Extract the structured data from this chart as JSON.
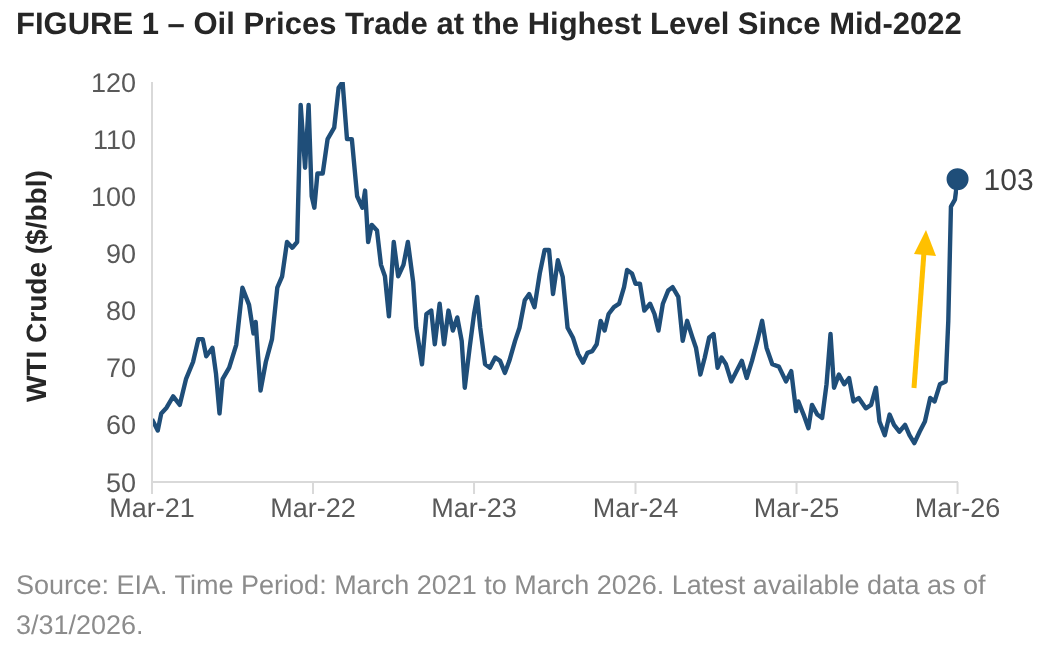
{
  "chart_data": {
    "type": "line",
    "title": "FIGURE 1 – Oil Prices Trade at the Highest Level Since Mid-2022",
    "ylabel": "WTI Crude ($/bbl)",
    "xlim": [
      "2021-03-01",
      "2026-03-02"
    ],
    "xticks": [
      {
        "value": "2021-03-01",
        "label": "Mar-21"
      },
      {
        "value": "2022-03-01",
        "label": "Mar-22"
      },
      {
        "value": "2023-03-01",
        "label": "Mar-23"
      },
      {
        "value": "2024-03-01",
        "label": "Mar-24"
      },
      {
        "value": "2025-03-01",
        "label": "Mar-25"
      },
      {
        "value": "2026-03-01",
        "label": "Mar-26"
      }
    ],
    "ylim": [
      50,
      120
    ],
    "yticks": [
      50,
      60,
      70,
      80,
      90,
      100,
      110,
      120
    ],
    "series": [
      {
        "color": "#1f4e79",
        "x": [
          "2021-03-01",
          "2021-03-14",
          "2021-03-22",
          "2021-04-03",
          "2021-04-18",
          "2021-05-03",
          "2021-05-17",
          "2021-06-02",
          "2021-06-14",
          "2021-06-24",
          "2021-07-02",
          "2021-07-16",
          "2021-07-24",
          "2021-08-01",
          "2021-08-08",
          "2021-08-23",
          "2021-09-08",
          "2021-09-22",
          "2021-10-07",
          "2021-10-17",
          "2021-10-22",
          "2021-11-02",
          "2021-11-14",
          "2021-11-28",
          "2021-12-10",
          "2021-12-21",
          "2022-01-01",
          "2022-01-13",
          "2022-01-24",
          "2022-02-01",
          "2022-02-11",
          "2022-02-19",
          "2022-02-26",
          "2022-03-04",
          "2022-03-11",
          "2022-03-23",
          "2022-04-03",
          "2022-04-18",
          "2022-04-28",
          "2022-05-07",
          "2022-05-17",
          "2022-05-28",
          "2022-06-09",
          "2022-06-21",
          "2022-06-27",
          "2022-07-04",
          "2022-07-12",
          "2022-07-24",
          "2022-08-02",
          "2022-08-11",
          "2022-08-20",
          "2022-08-31",
          "2022-09-10",
          "2022-09-22",
          "2022-10-02",
          "2022-10-14",
          "2022-10-21",
          "2022-11-03",
          "2022-11-13",
          "2022-11-24",
          "2022-12-02",
          "2022-12-13",
          "2022-12-23",
          "2023-01-02",
          "2023-01-12",
          "2023-01-22",
          "2023-02-01",
          "2023-02-08",
          "2023-02-19",
          "2023-03-01",
          "2023-03-08",
          "2023-03-15",
          "2023-03-26",
          "2023-04-06",
          "2023-04-18",
          "2023-04-29",
          "2023-05-10",
          "2023-05-20",
          "2023-06-02",
          "2023-06-12",
          "2023-06-24",
          "2023-07-04",
          "2023-07-16",
          "2023-07-28",
          "2023-08-08",
          "2023-08-18",
          "2023-08-27",
          "2023-09-07",
          "2023-09-18",
          "2023-09-29",
          "2023-10-11",
          "2023-10-23",
          "2023-11-03",
          "2023-11-13",
          "2023-11-24",
          "2023-12-04",
          "2023-12-13",
          "2023-12-22",
          "2023-12-31",
          "2024-01-12",
          "2024-01-24",
          "2024-02-04",
          "2024-02-11",
          "2024-02-22",
          "2024-03-01",
          "2024-03-11",
          "2024-03-21",
          "2024-04-03",
          "2024-04-13",
          "2024-04-22",
          "2024-05-02",
          "2024-05-14",
          "2024-05-24",
          "2024-06-06",
          "2024-06-16",
          "2024-06-26",
          "2024-07-08",
          "2024-07-16",
          "2024-07-26",
          "2024-08-05",
          "2024-08-15",
          "2024-08-25",
          "2024-09-03",
          "2024-09-12",
          "2024-09-22",
          "2024-10-04",
          "2024-10-28",
          "2024-11-08",
          "2024-11-20",
          "2024-12-02",
          "2024-12-13",
          "2024-12-23",
          "2025-01-05",
          "2025-01-20",
          "2025-02-05",
          "2025-02-17",
          "2025-02-28",
          "2025-03-05",
          "2025-03-17",
          "2025-03-28",
          "2025-04-05",
          "2025-04-17",
          "2025-04-28",
          "2025-05-08",
          "2025-05-17",
          "2025-05-25",
          "2025-06-05",
          "2025-06-17",
          "2025-06-28",
          "2025-07-08",
          "2025-07-20",
          "2025-08-05",
          "2025-08-17",
          "2025-08-28",
          "2025-09-05",
          "2025-09-17",
          "2025-09-28",
          "2025-10-08",
          "2025-10-20",
          "2025-11-02",
          "2025-11-12",
          "2025-11-23",
          "2025-12-05",
          "2025-12-17",
          "2025-12-29",
          "2026-01-08",
          "2026-01-20",
          "2026-02-02",
          "2026-02-08",
          "2026-02-14",
          "2026-02-23",
          "2026-03-01"
        ],
        "values": [
          61,
          59,
          62,
          63,
          65,
          63.5,
          68,
          71,
          75,
          75,
          72,
          73.5,
          69,
          62,
          68,
          70,
          74,
          84,
          81,
          76,
          78,
          66,
          71,
          75,
          84,
          86,
          92,
          91,
          92,
          116,
          105,
          116,
          100,
          98,
          104,
          104,
          110,
          112,
          119,
          120,
          110,
          110,
          100,
          98,
          101,
          92,
          95,
          94,
          88,
          86,
          79,
          92,
          86,
          88,
          92,
          85,
          77,
          70.6,
          79.4,
          80,
          74.1,
          81.2,
          74.1,
          80,
          76.5,
          78.8,
          74.7,
          66.5,
          73.5,
          79.4,
          82.4,
          77,
          70.6,
          70,
          71.8,
          71.2,
          69.1,
          71.2,
          74.7,
          77,
          81.8,
          82.9,
          80.6,
          86.5,
          90.6,
          90.6,
          82.9,
          88.8,
          85.9,
          77,
          75.3,
          72.4,
          70.9,
          72.6,
          72.9,
          74.1,
          78.2,
          76.5,
          79.4,
          80.6,
          81.2,
          84.1,
          87.1,
          86.5,
          84.7,
          84.7,
          80,
          81.2,
          79.4,
          76.5,
          81.2,
          83.5,
          84.1,
          82.4,
          74.7,
          78.2,
          75.3,
          73.5,
          68.8,
          71.8,
          75.3,
          75.9,
          70,
          71.8,
          70.6,
          67.6,
          71.2,
          68.2,
          71.2,
          74.7,
          78.2,
          73.5,
          70.6,
          70.2,
          67.6,
          69.4,
          62.4,
          64.1,
          61.8,
          59.4,
          63.5,
          61.8,
          61.2,
          67.1,
          75.9,
          66.5,
          68.8,
          67.1,
          68.2,
          64.1,
          64.7,
          62.9,
          63.5,
          66.5,
          60.6,
          58.2,
          61.8,
          60,
          58.8,
          60,
          58.2,
          56.8,
          58.8,
          60.6,
          64.7,
          64.1,
          67.1,
          67.6,
          78.2,
          98.2,
          99.4,
          103
        ]
      }
    ],
    "annotations": [
      {
        "text": "103",
        "x": "2026-03-01",
        "y": 103
      },
      "Source: EIA. Time Period: March 2021 to March 2026. Latest available data as of 3/31/2026."
    ]
  }
}
